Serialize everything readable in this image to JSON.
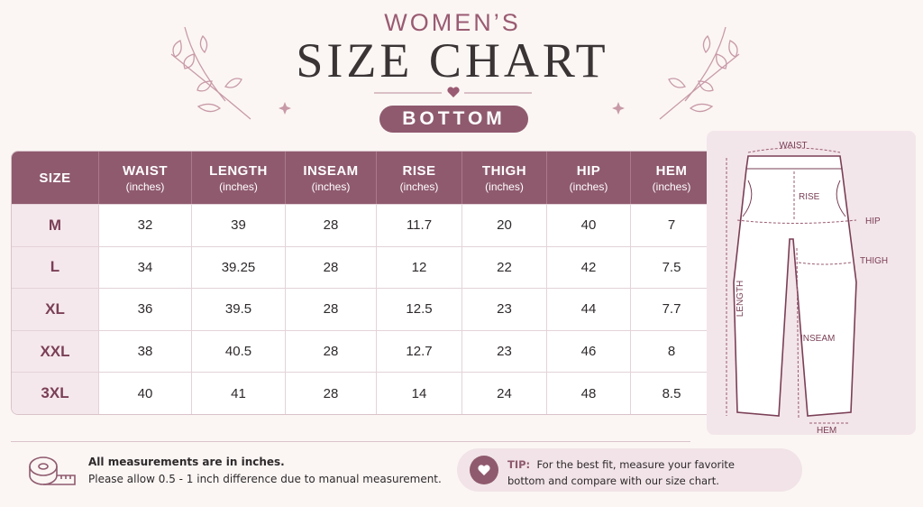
{
  "header": {
    "subtitle": "WOMEN’S",
    "title": "SIZE CHART",
    "badge": "BOTTOM"
  },
  "table": {
    "columns": [
      {
        "name": "SIZE"
      },
      {
        "name": "WAIST",
        "unit": "(inches)"
      },
      {
        "name": "LENGTH",
        "unit": "(inches)"
      },
      {
        "name": "INSEAM",
        "unit": "(inches)"
      },
      {
        "name": "RISE",
        "unit": "(inches)"
      },
      {
        "name": "THIGH",
        "unit": "(inches)"
      },
      {
        "name": "HIP",
        "unit": "(inches)"
      },
      {
        "name": "HEM",
        "unit": "(inches)"
      }
    ],
    "rows": [
      [
        "M",
        32,
        39,
        28,
        11.7,
        20,
        40,
        7
      ],
      [
        "L",
        34,
        39.25,
        28,
        12,
        22,
        42,
        7.5
      ],
      [
        "XL",
        36,
        39.5,
        28,
        12.5,
        23,
        44,
        7.7
      ],
      [
        "XXL",
        38,
        40.5,
        28,
        12.7,
        23,
        46,
        8
      ],
      [
        "3XL",
        40,
        41,
        28,
        14,
        24,
        48,
        8.5
      ]
    ]
  },
  "diagram": {
    "labels": {
      "waist": "WAIST",
      "rise": "RISE",
      "hip": "HIP",
      "thigh": "THIGH",
      "length": "LENGTH",
      "inseam": "INSEAM",
      "hem": "HEM"
    }
  },
  "footer": {
    "note_title": "All measurements are in inches.",
    "note_text": "Please allow 0.5  - 1 inch difference due to manual measurement.",
    "tip_label": "TIP:",
    "tip_text": "For the best fit, measure your favorite bottom and compare with our size chart."
  }
}
